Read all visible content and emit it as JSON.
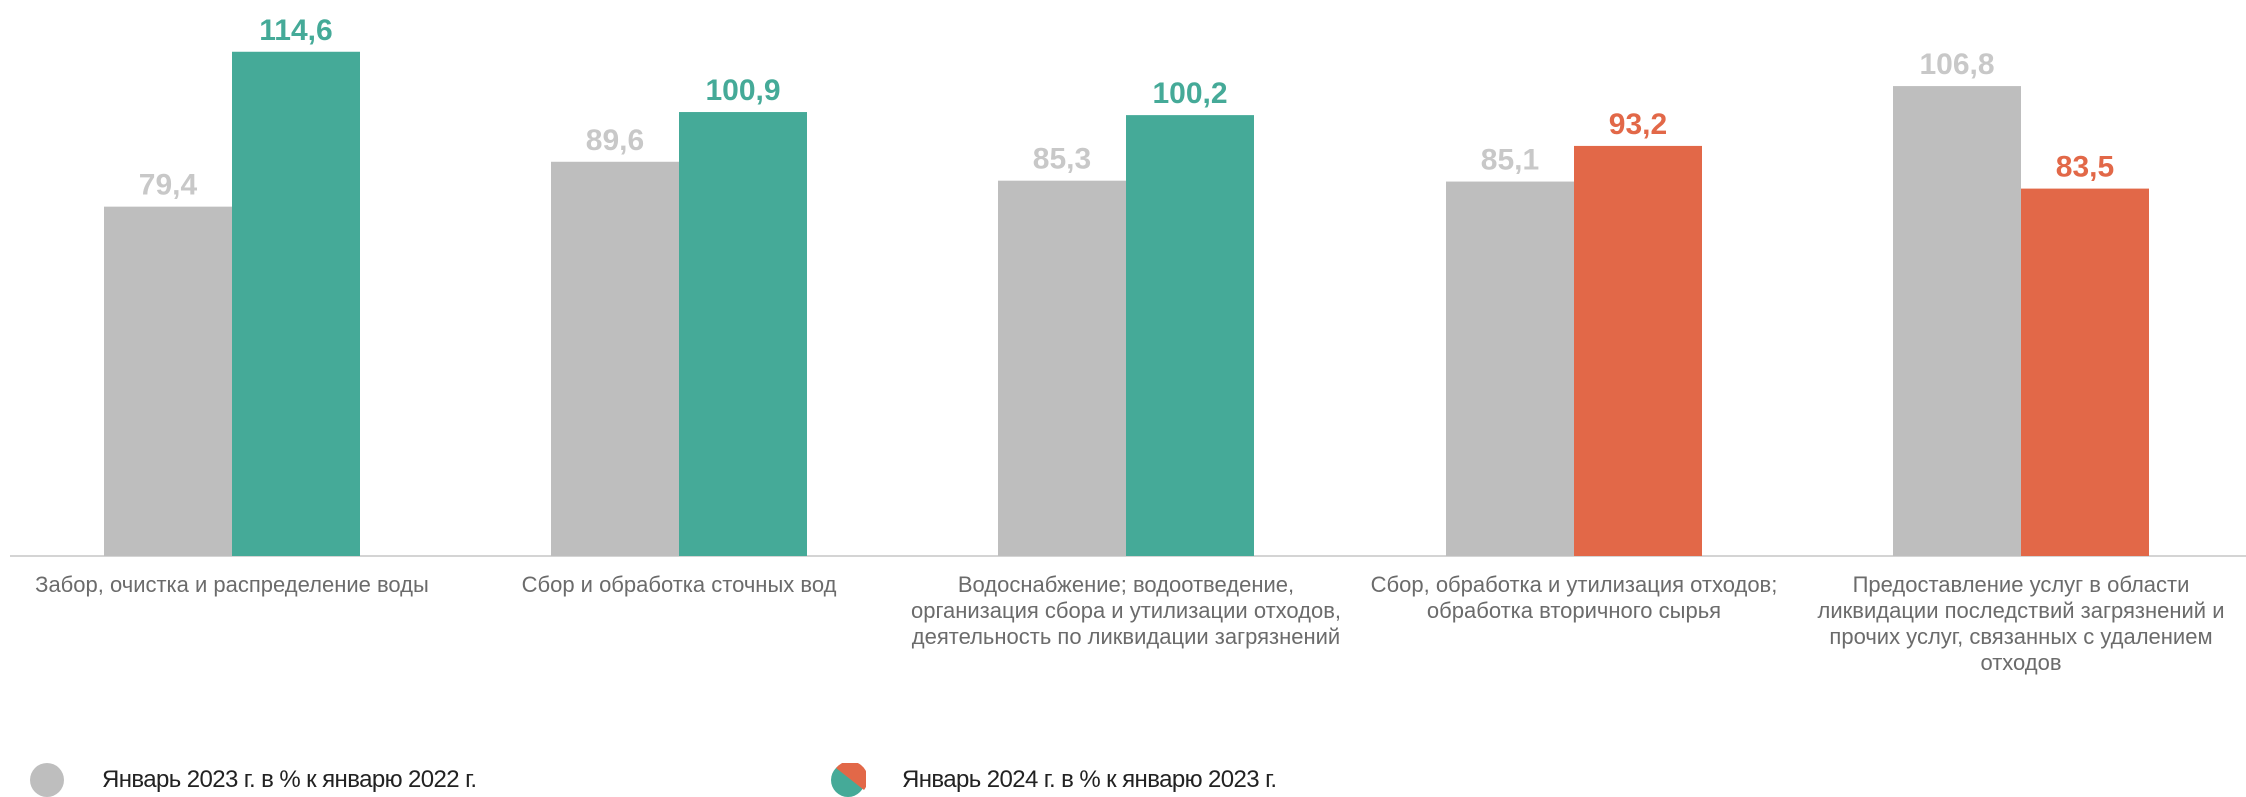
{
  "chart_data": {
    "type": "bar",
    "categories": [
      "Забор, очистка и распределение воды",
      "Сбор и обработка сточных вод",
      "Водоснабжение; водоотведение, организация сбора и утилизации отходов, деятельность по ликвидации загрязнений",
      "Сбор, обработка и утилизация отходов; обработка вторичного сырья",
      "Предоставление услуг в области ликвидации последствий загрязнений и прочих услуг, связанных с удалением отходов"
    ],
    "series": [
      {
        "name": "Январь  2023 г. в % к январю  2022 г.",
        "values": [
          79.4,
          89.6,
          85.3,
          85.1,
          106.8
        ],
        "labels": [
          "79,4",
          "89,6",
          "85,3",
          "85,1",
          "106,8"
        ]
      },
      {
        "name": "Январь  2024 г. в % к январю  2023 г.",
        "values": [
          114.6,
          100.9,
          100.2,
          93.2,
          83.5
        ],
        "labels": [
          "114,6",
          "100,9",
          "100,2",
          "93,2",
          "83,5"
        ]
      }
    ],
    "ylim": [
      0,
      120
    ],
    "grid": false,
    "legend_placement": "bottom",
    "colors": {
      "series1": "#bebebe",
      "above_100": "#45aa98",
      "below_100": "#e26848",
      "series1_label": "#c8c8c8",
      "axis": "#d4d4d4"
    }
  },
  "legend": [
    {
      "label": "Январь  2023 г. в % к январю  2022 г."
    },
    {
      "label": "Январь  2024 г. в % к январю  2023 г."
    }
  ]
}
